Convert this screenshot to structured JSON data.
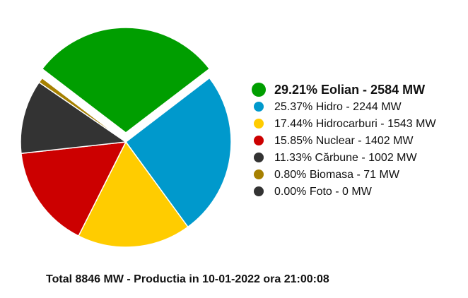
{
  "chart_data": {
    "type": "pie",
    "categories": [
      "29.21% Eolian - 2584 MW",
      "25.37% Hidro - 2244 MW",
      "17.44% Hidrocarburi - 1543 MW",
      "15.85% Nuclear - 1402 MW",
      "11.33% Cărbune - 1002 MW",
      "0.80% Biomasa - 71 MW",
      "0.00% Foto - 0 MW"
    ],
    "values": [
      2584,
      2244,
      1543,
      1402,
      1002,
      71,
      0
    ],
    "colors": [
      "#009e00",
      "#0099cc",
      "#ffcc00",
      "#cc0000",
      "#333333",
      "#a68000",
      "#333333"
    ],
    "footer": "Total 8846 MW - Productia in 10-01-2022 ora 21:00:08"
  }
}
